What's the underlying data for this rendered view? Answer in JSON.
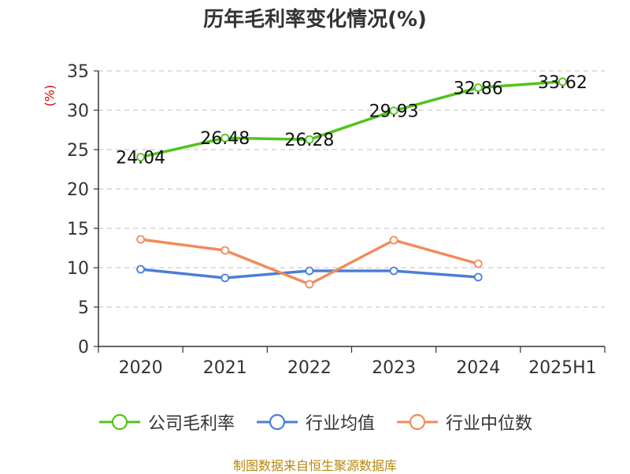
{
  "chart_data": {
    "type": "line",
    "title": "历年毛利率变化情况(%)",
    "unit_label": "(%)",
    "categories": [
      "2020",
      "2021",
      "2022",
      "2023",
      "2024",
      "2025H1"
    ],
    "ylim": [
      0,
      35
    ],
    "yticks": [
      0,
      5,
      10,
      15,
      20,
      25,
      30,
      35
    ],
    "grid": true,
    "legend_position": "bottom",
    "series": [
      {
        "name": "公司毛利率",
        "color": "#52c41a",
        "values": [
          24.04,
          26.48,
          26.28,
          29.93,
          32.86,
          33.62
        ],
        "labels": [
          "24.04",
          "26.48",
          "26.28",
          "29.93",
          "32.86",
          "33.62"
        ]
      },
      {
        "name": "行业均值",
        "color": "#4a7fd8",
        "values": [
          9.8,
          8.7,
          9.6,
          9.6,
          8.8,
          null
        ]
      },
      {
        "name": "行业中位数",
        "color": "#f28b5b",
        "values": [
          13.6,
          12.2,
          7.9,
          13.5,
          10.5,
          null
        ]
      }
    ]
  },
  "source": "制图数据来自恒生聚源数据库"
}
